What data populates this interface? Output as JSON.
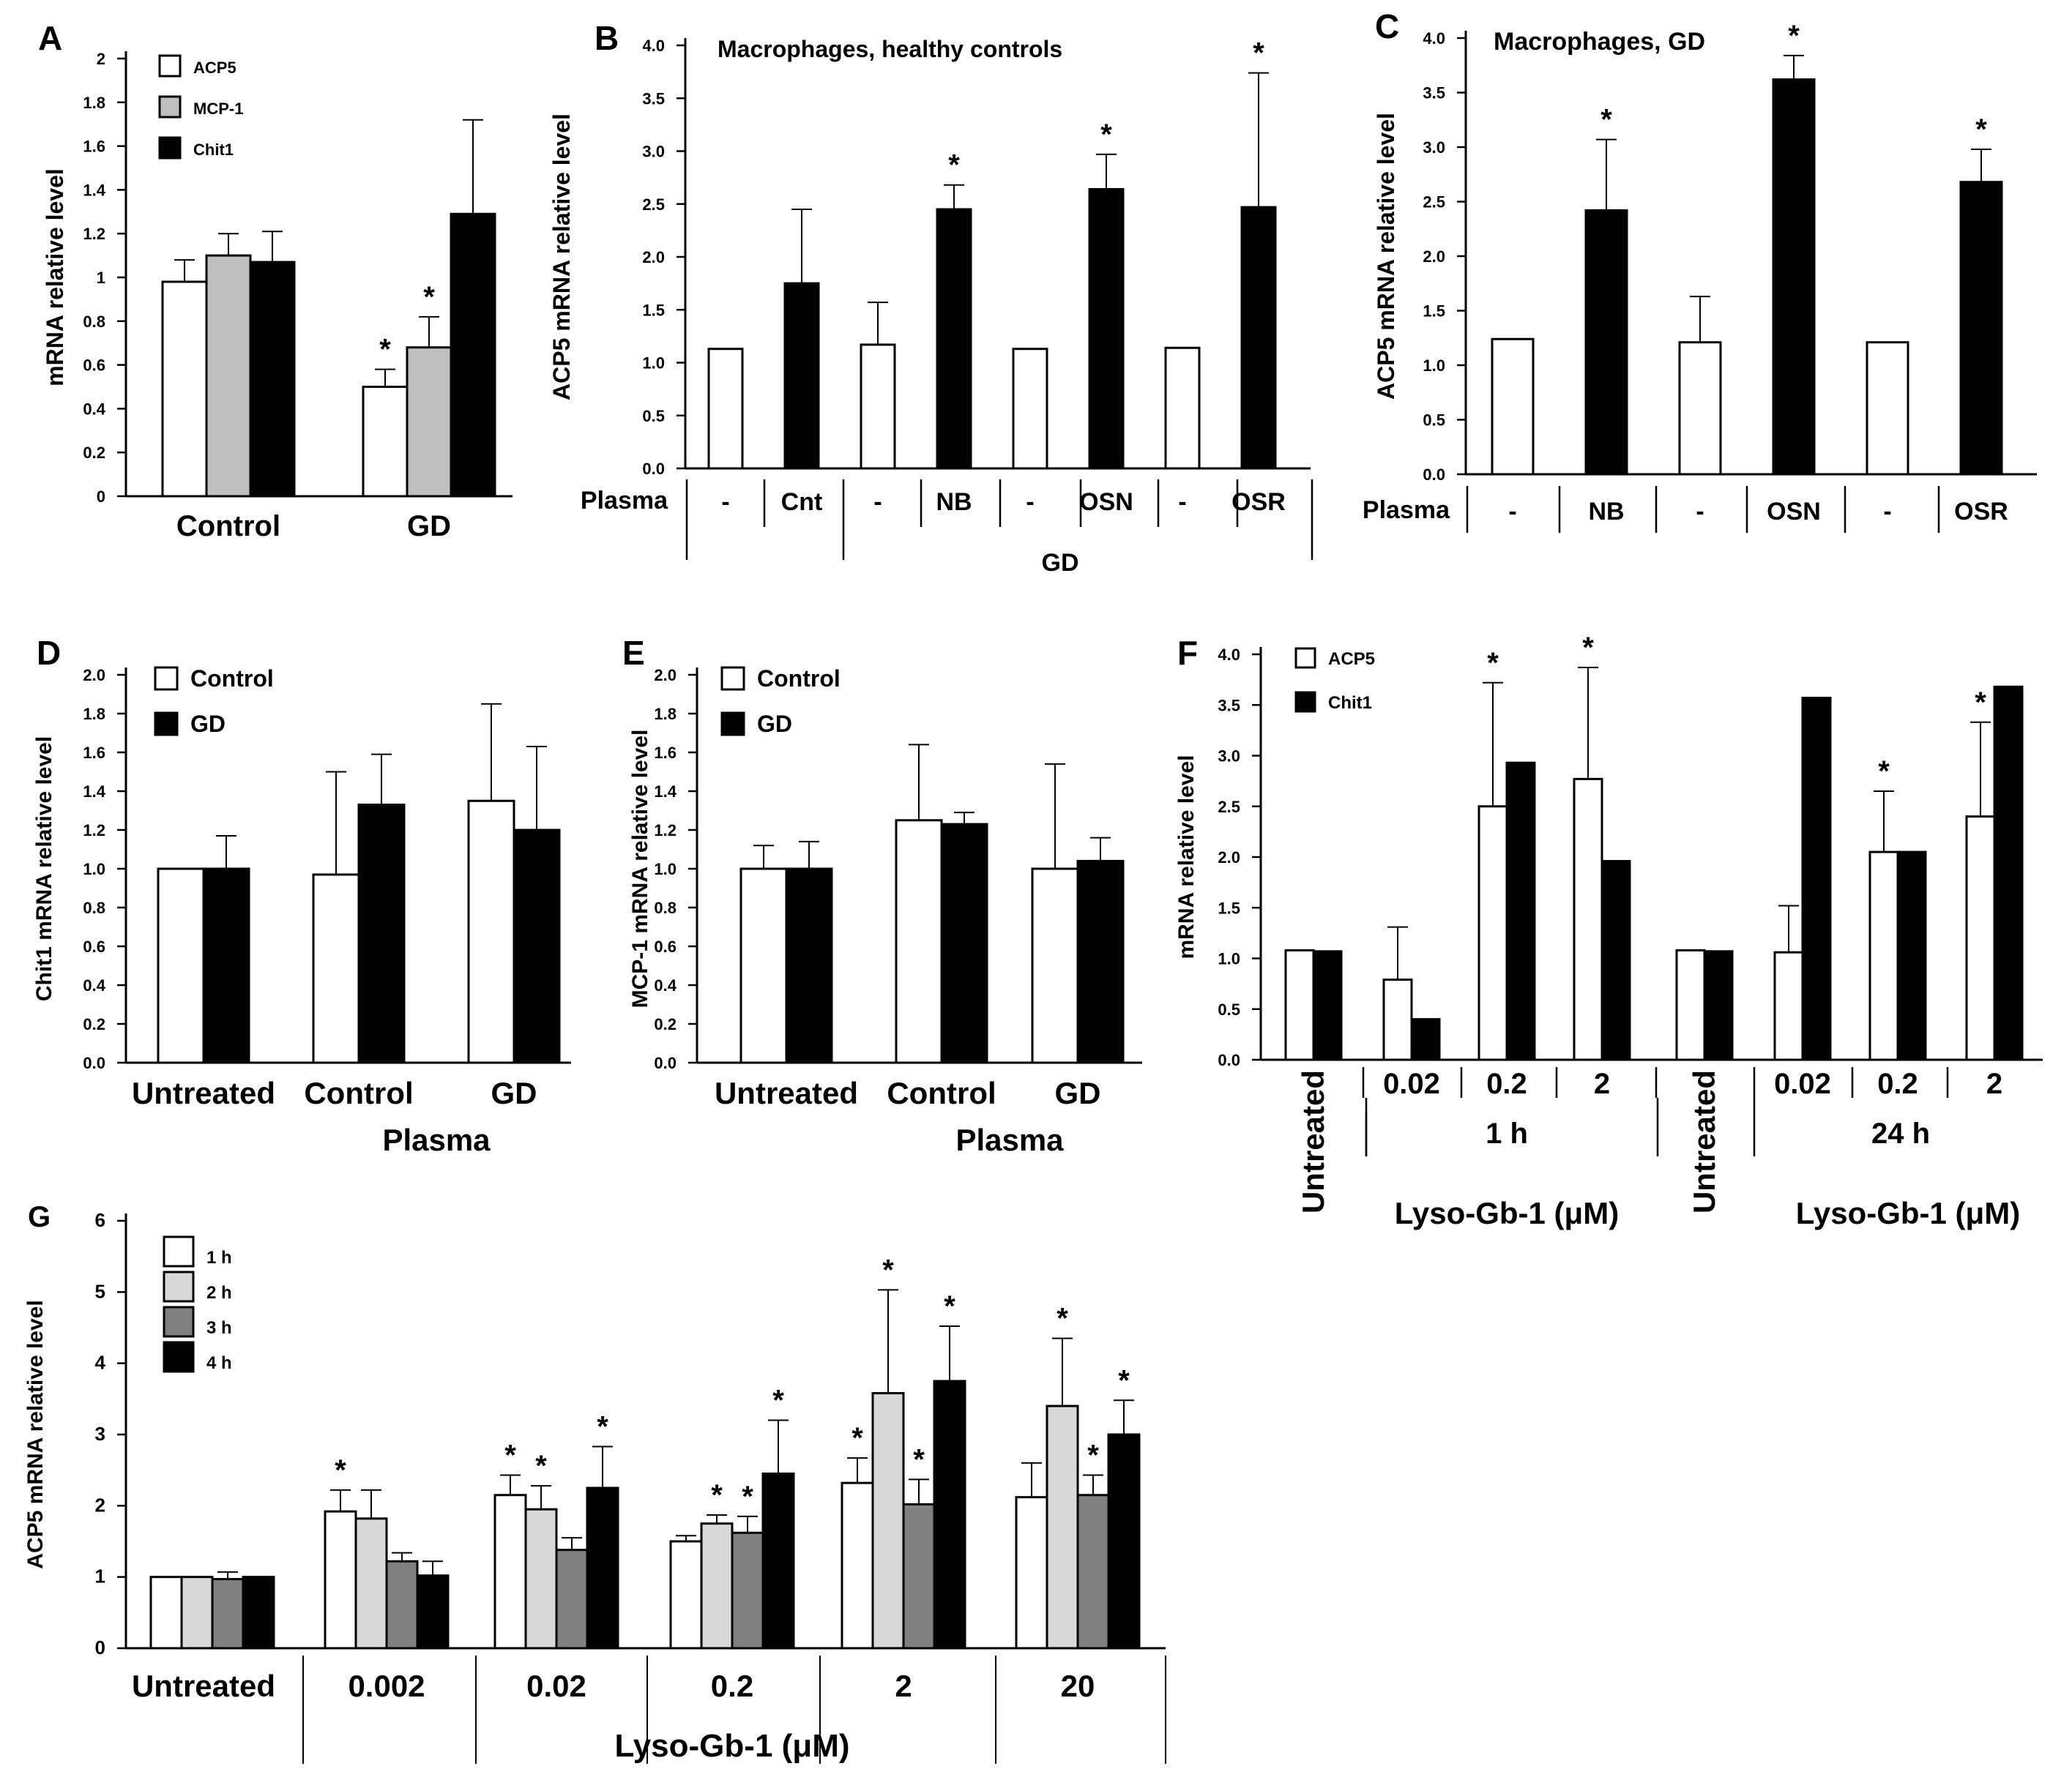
{
  "figure": {
    "caption": ""
  },
  "chart_data": [
    {
      "panel": "A",
      "type": "bar",
      "title": "",
      "ylabel": "mRNA relative level",
      "xlabel": "",
      "ylim": [
        0,
        2
      ],
      "yticks": [
        "0",
        "0.2",
        "0.4",
        "0.6",
        "0.8",
        "1",
        "1.2",
        "1.4",
        "1.6",
        "1.8",
        "2"
      ],
      "categories": [
        "Control",
        "GD"
      ],
      "legend": [
        "ACP5",
        "MCP-1",
        "Chit1"
      ],
      "series": [
        {
          "name": "ACP5",
          "fill": "#ffffff",
          "values": [
            0.98,
            0.5
          ],
          "errors": [
            0.1,
            0.08
          ],
          "stars": [
            false,
            true
          ]
        },
        {
          "name": "MCP-1",
          "fill": "#bfbfbf",
          "values": [
            1.1,
            0.68
          ],
          "errors": [
            0.1,
            0.14
          ],
          "stars": [
            false,
            true
          ]
        },
        {
          "name": "Chit1",
          "fill": "#000000",
          "values": [
            1.07,
            1.29
          ],
          "errors": [
            0.14,
            0.43
          ],
          "stars": [
            false,
            false
          ]
        }
      ],
      "star_symbol": "*"
    },
    {
      "panel": "B",
      "type": "bar",
      "title": "Macrophages, healthy controls",
      "ylabel": "ACP5 mRNA relative level",
      "xlabel": "",
      "ylim": [
        0,
        4.0
      ],
      "yticks": [
        "0.0",
        "0.5",
        "1.0",
        "1.5",
        "2.0",
        "2.5",
        "3.0",
        "3.5",
        "4.0"
      ],
      "row_label": "Plasma",
      "categories": [
        "-",
        "Cnt",
        "-",
        "NB",
        "-",
        "OSN",
        "-",
        "OSR"
      ],
      "group_label": "GD",
      "values": [
        1.13,
        1.75,
        1.17,
        2.45,
        1.13,
        2.64,
        1.14,
        2.47
      ],
      "errors": [
        0,
        0.7,
        0.4,
        0.23,
        0,
        0.33,
        0,
        1.27
      ],
      "fills": [
        "#ffffff",
        "#000000",
        "#ffffff",
        "#000000",
        "#ffffff",
        "#000000",
        "#ffffff",
        "#000000"
      ],
      "stars": [
        false,
        false,
        false,
        true,
        false,
        true,
        false,
        true
      ],
      "star_symbol": "*"
    },
    {
      "panel": "C",
      "type": "bar",
      "title": "Macrophages, GD",
      "ylabel": "ACP5 mRNA relative level",
      "xlabel": "",
      "ylim": [
        0,
        4.0
      ],
      "yticks": [
        "0.0",
        "0.5",
        "1.0",
        "1.5",
        "2.0",
        "2.5",
        "3.0",
        "3.5",
        "4.0"
      ],
      "row_label": "Plasma",
      "categories": [
        "-",
        "NB",
        "-",
        "OSN",
        "-",
        "OSR"
      ],
      "values": [
        1.24,
        2.42,
        1.21,
        3.62,
        1.21,
        2.68
      ],
      "errors": [
        0,
        0.65,
        0.42,
        0.22,
        0,
        0.3
      ],
      "fills": [
        "#ffffff",
        "#000000",
        "#ffffff",
        "#000000",
        "#ffffff",
        "#000000"
      ],
      "stars": [
        false,
        true,
        false,
        true,
        false,
        true
      ],
      "star_symbol": "*"
    },
    {
      "panel": "D",
      "type": "bar",
      "title": "",
      "ylabel": "Chit1 mRNA relative level",
      "xlabel": "Plasma",
      "ylim": [
        0,
        2.0
      ],
      "yticks": [
        "0.0",
        "0.2",
        "0.4",
        "0.6",
        "0.8",
        "1.0",
        "1.2",
        "1.4",
        "1.6",
        "1.8",
        "2.0"
      ],
      "categories": [
        "Untreated",
        "Control",
        "GD"
      ],
      "legend": [
        "Control",
        "GD"
      ],
      "series": [
        {
          "name": "Control",
          "fill": "#ffffff",
          "values": [
            1.0,
            0.97,
            1.35
          ],
          "errors": [
            0,
            0.53,
            0.5
          ]
        },
        {
          "name": "GD",
          "fill": "#000000",
          "values": [
            1.0,
            1.33,
            1.2
          ],
          "errors": [
            0.17,
            0.26,
            0.43
          ]
        }
      ]
    },
    {
      "panel": "E",
      "type": "bar",
      "title": "",
      "ylabel": "MCP-1 mRNA relative level",
      "xlabel": "Plasma",
      "ylim": [
        0,
        2.0
      ],
      "yticks": [
        "0.0",
        "0.2",
        "0.4",
        "0.6",
        "0.8",
        "1.0",
        "1.2",
        "1.4",
        "1.6",
        "1.8",
        "2.0"
      ],
      "categories": [
        "Untreated",
        "Control",
        "GD"
      ],
      "legend": [
        "Control",
        "GD"
      ],
      "series": [
        {
          "name": "Control",
          "fill": "#ffffff",
          "values": [
            1.0,
            1.25,
            1.0
          ],
          "errors": [
            0.12,
            0.39,
            0.54
          ]
        },
        {
          "name": "GD",
          "fill": "#000000",
          "values": [
            1.0,
            1.23,
            1.04
          ],
          "errors": [
            0.14,
            0.06,
            0.12
          ]
        }
      ]
    },
    {
      "panel": "F",
      "type": "bar",
      "title": "",
      "ylabel": "mRNA relative level",
      "xlabel": "Lyso-Gb-1 (μM)",
      "ylim": [
        0,
        4.0
      ],
      "yticks": [
        "0.0",
        "0.5",
        "1.0",
        "1.5",
        "2.0",
        "2.5",
        "3.0",
        "3.5",
        "4.0"
      ],
      "groups": [
        {
          "label": "1 h",
          "axis_label": "Lyso-Gb-1 (μM)"
        },
        {
          "label": "24 h",
          "axis_label": "Lyso-Gb-1 (μM)"
        }
      ],
      "untreated_label": "Untreated",
      "categories": [
        "Untreated",
        "0.02",
        "0.2",
        "2",
        "Untreated",
        "0.02",
        "0.2",
        "2"
      ],
      "legend": [
        "ACP5",
        "Chit1"
      ],
      "series": [
        {
          "name": "ACP5",
          "fill": "#ffffff",
          "values": [
            1.08,
            0.79,
            2.5,
            2.77,
            1.08,
            1.06,
            2.05,
            2.4
          ],
          "errors": [
            0,
            0.52,
            1.22,
            1.1,
            0,
            0.46,
            0.6,
            0.93
          ],
          "stars": [
            false,
            false,
            true,
            true,
            false,
            false,
            true,
            true
          ]
        },
        {
          "name": "Chit1",
          "fill": "#000000",
          "values": [
            1.07,
            0.4,
            2.93,
            1.96,
            1.07,
            3.57,
            2.05,
            3.68
          ],
          "errors": [
            0,
            0,
            0,
            0,
            0,
            0,
            0,
            0
          ],
          "stars": [
            false,
            false,
            false,
            false,
            false,
            false,
            false,
            false
          ]
        }
      ],
      "star_symbol": "*"
    },
    {
      "panel": "G",
      "type": "bar",
      "title": "",
      "ylabel": "ACP5 mRNA relative level",
      "xlabel": "Lyso-Gb-1 (μM)",
      "ylim": [
        0,
        6
      ],
      "yticks": [
        "0",
        "1",
        "2",
        "3",
        "4",
        "5",
        "6"
      ],
      "categories": [
        "Untreated",
        "0.002",
        "0.02",
        "0.2",
        "2",
        "20"
      ],
      "legend": [
        "1 h",
        "2 h",
        "3 h",
        "4 h"
      ],
      "series": [
        {
          "name": "1 h",
          "fill": "#ffffff",
          "values": [
            1.0,
            1.92,
            2.15,
            1.5,
            2.32,
            2.12
          ],
          "errors": [
            0,
            0.3,
            0.28,
            0.08,
            0.35,
            0.48
          ],
          "stars": [
            false,
            true,
            true,
            false,
            true,
            false
          ]
        },
        {
          "name": "2 h",
          "fill": "#d9d9d9",
          "values": [
            1.0,
            1.82,
            1.95,
            1.75,
            3.58,
            3.4
          ],
          "errors": [
            0,
            0.4,
            0.33,
            0.12,
            1.45,
            0.95
          ],
          "stars": [
            false,
            false,
            true,
            true,
            true,
            true
          ]
        },
        {
          "name": "3 h",
          "fill": "#808080",
          "values": [
            0.97,
            1.22,
            1.38,
            1.62,
            2.02,
            2.15
          ],
          "errors": [
            0.1,
            0.12,
            0.17,
            0.23,
            0.35,
            0.28
          ],
          "stars": [
            false,
            false,
            false,
            true,
            true,
            true
          ]
        },
        {
          "name": "4 h",
          "fill": "#000000",
          "values": [
            1.0,
            1.02,
            2.25,
            2.45,
            3.75,
            3.0
          ],
          "errors": [
            0,
            0.2,
            0.58,
            0.75,
            0.77,
            0.48
          ],
          "stars": [
            false,
            false,
            true,
            true,
            true,
            true
          ]
        }
      ],
      "star_symbol": "*"
    }
  ]
}
